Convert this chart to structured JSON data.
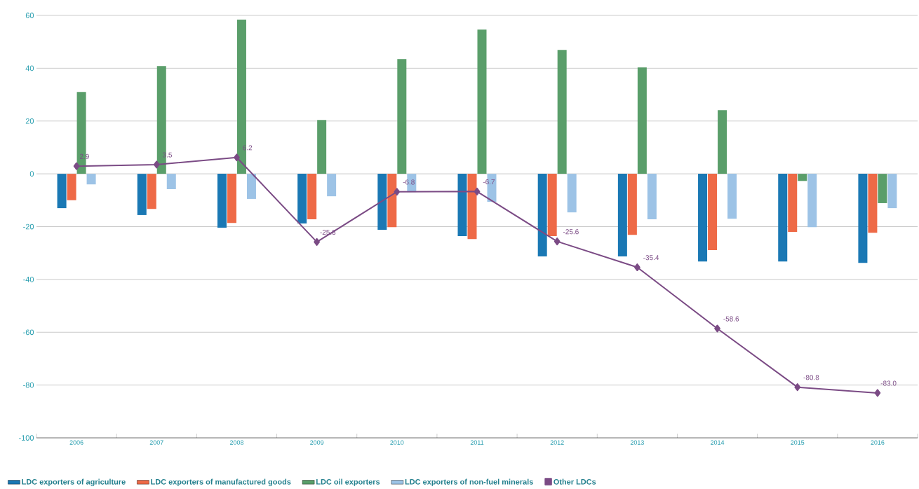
{
  "chart_data": {
    "type": "bar",
    "categories": [
      "2006",
      "2007",
      "2008",
      "2009",
      "2010",
      "2011",
      "2012",
      "2013",
      "2014",
      "2015",
      "2016"
    ],
    "series": [
      {
        "name": "LDC exporters of agriculture",
        "color": "#1a78b4",
        "values": [
          -13,
          -15.6,
          -20.4,
          -18.8,
          -21.2,
          -23.6,
          -31.3,
          -31.3,
          -33.2,
          -33.2,
          -33.7
        ]
      },
      {
        "name": "LDC exporters of manufactured goods",
        "color": "#ee6a47",
        "values": [
          -10,
          -13.3,
          -18.6,
          -17.2,
          -20.2,
          -24.7,
          -23.6,
          -23.1,
          -28.9,
          -22,
          -22.3
        ]
      },
      {
        "name": "LDC oil exporters",
        "color": "#5a9e6a",
        "values": [
          31,
          40.8,
          58.4,
          20.4,
          43.5,
          54.6,
          46.9,
          40.3,
          24.1,
          -2.7,
          -11.1
        ]
      },
      {
        "name": "LDC exporters of non-fuel minerals",
        "color": "#9dc3e6",
        "values": [
          -4,
          -5.8,
          -9.5,
          -8.5,
          -6.9,
          -10.6,
          -14.6,
          -17.2,
          -17,
          -20.2,
          -13
        ]
      },
      {
        "name": "Other LDCs",
        "type": "line",
        "color": "#7b4b85",
        "marker": "diamond",
        "values": [
          2.9,
          3.5,
          6.2,
          -25.8,
          -6.8,
          -6.7,
          -25.6,
          -35.4,
          -58.6,
          -80.8,
          -83.0
        ],
        "value_labels": [
          "2.9",
          "3.5",
          "6.2",
          "-25.8",
          "-6.8",
          "-6.7",
          "-25.6",
          "-35.4",
          "-58.6",
          "-80.8",
          "-83.0"
        ]
      }
    ],
    "ylim": [
      -100,
      60
    ],
    "yticks": [
      -100,
      -80,
      -60,
      -40,
      -20,
      0,
      20,
      40,
      60
    ],
    "grid": "y",
    "legend": "bottom"
  }
}
